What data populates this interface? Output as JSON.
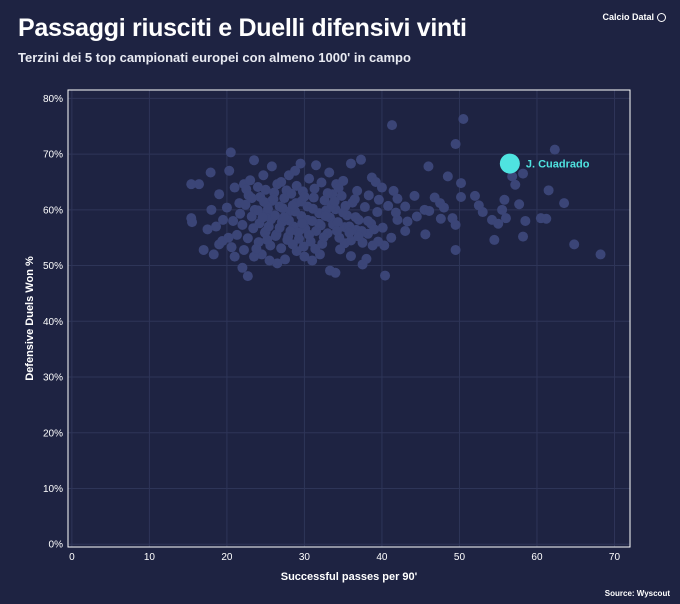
{
  "header": {
    "title": "Passaggi riusciti e Duelli difensivi vinti",
    "subtitle": "Terzini dei 5 top campionati europei con almeno 1000' in campo",
    "brand": "Calcio Datal"
  },
  "footer": {
    "source": "Source: Wyscout"
  },
  "colors": {
    "background": "#1e2342",
    "points": "#3b4577",
    "highlight": "#4fe3e0",
    "grid": "#2e3558",
    "axis": "#ffffff"
  },
  "chart_data": {
    "type": "scatter",
    "title": "Passaggi riusciti e Duelli difensivi vinti",
    "xlabel": "Successful passes per 90'",
    "ylabel": "Defensive Duels Won %",
    "xlim": [
      -0.5,
      72
    ],
    "ylim": [
      -0.5,
      81.5
    ],
    "xticks": [
      0,
      10,
      20,
      30,
      40,
      50,
      60,
      70
    ],
    "yticks": [
      0,
      10,
      20,
      30,
      40,
      50,
      60,
      70,
      80
    ],
    "xtick_labels": [
      "0",
      "10",
      "20",
      "30",
      "40",
      "50",
      "60",
      "70"
    ],
    "ytick_labels": [
      "0%",
      "10%",
      "20%",
      "30%",
      "40%",
      "50%",
      "60%",
      "70%",
      "80%"
    ],
    "grid": true,
    "highlight": {
      "label": "J. Cuadrado",
      "x": 56.5,
      "y": 68.3
    },
    "points": [
      [
        15.4,
        64.6
      ],
      [
        16.4,
        64.6
      ],
      [
        17.9,
        66.7
      ],
      [
        15.4,
        58.5
      ],
      [
        15.5,
        57.8
      ],
      [
        17.0,
        52.8
      ],
      [
        18.3,
        52.0
      ],
      [
        19.0,
        53.8
      ],
      [
        20.5,
        70.3
      ],
      [
        20.3,
        67.0
      ],
      [
        21.0,
        64.0
      ],
      [
        22.2,
        64.6
      ],
      [
        22.5,
        63.7
      ],
      [
        23.5,
        68.9
      ],
      [
        24.7,
        66.2
      ],
      [
        25.8,
        67.8
      ],
      [
        26.5,
        64.6
      ],
      [
        27.7,
        63.5
      ],
      [
        28.0,
        66.2
      ],
      [
        28.8,
        67.0
      ],
      [
        29.5,
        68.3
      ],
      [
        31.5,
        68.0
      ],
      [
        33.2,
        66.7
      ],
      [
        34.1,
        64.6
      ],
      [
        35.0,
        65.2
      ],
      [
        36.0,
        68.3
      ],
      [
        37.3,
        69.0
      ],
      [
        38.7,
        65.8
      ],
      [
        39.2,
        65.0
      ],
      [
        41.3,
        75.2
      ],
      [
        40.0,
        64.0
      ],
      [
        41.5,
        63.4
      ],
      [
        42.0,
        62.0
      ],
      [
        43.0,
        60.6
      ],
      [
        44.2,
        62.5
      ],
      [
        45.5,
        60.0
      ],
      [
        46.8,
        62.2
      ],
      [
        47.5,
        61.2
      ],
      [
        48.0,
        60.4
      ],
      [
        49.1,
        58.5
      ],
      [
        49.5,
        57.3
      ],
      [
        50.2,
        62.3
      ],
      [
        48.5,
        66.0
      ],
      [
        49.5,
        71.8
      ],
      [
        50.5,
        76.3
      ],
      [
        46.0,
        67.8
      ],
      [
        52.0,
        62.5
      ],
      [
        53.0,
        59.6
      ],
      [
        54.2,
        58.2
      ],
      [
        55.0,
        57.5
      ],
      [
        55.5,
        60.0
      ],
      [
        56.0,
        58.5
      ],
      [
        57.2,
        64.5
      ],
      [
        58.2,
        66.5
      ],
      [
        57.7,
        61.0
      ],
      [
        58.5,
        58.0
      ],
      [
        60.5,
        58.5
      ],
      [
        61.5,
        63.5
      ],
      [
        62.3,
        70.8
      ],
      [
        63.5,
        61.2
      ],
      [
        61.2,
        58.4
      ],
      [
        64.8,
        53.8
      ],
      [
        68.2,
        52.0
      ],
      [
        58.2,
        55.2
      ],
      [
        54.5,
        54.6
      ],
      [
        49.5,
        52.8
      ],
      [
        45.6,
        55.6
      ],
      [
        43.0,
        56.2
      ],
      [
        42.0,
        58.2
      ],
      [
        41.2,
        55.0
      ],
      [
        40.3,
        53.6
      ],
      [
        39.5,
        54.3
      ],
      [
        38.0,
        51.2
      ],
      [
        37.5,
        50.2
      ],
      [
        36.0,
        51.7
      ],
      [
        35.2,
        54.0
      ],
      [
        34.6,
        52.9
      ],
      [
        33.3,
        49.1
      ],
      [
        32.0,
        52.0
      ],
      [
        31.0,
        50.9
      ],
      [
        30.0,
        51.6
      ],
      [
        29.0,
        52.6
      ],
      [
        27.5,
        51.1
      ],
      [
        26.5,
        50.4
      ],
      [
        25.5,
        50.9
      ],
      [
        24.5,
        52.0
      ],
      [
        23.5,
        51.6
      ],
      [
        22.7,
        48.1
      ],
      [
        22.0,
        49.6
      ],
      [
        21.0,
        51.6
      ],
      [
        20.6,
        53.3
      ],
      [
        19.4,
        54.4
      ],
      [
        18.6,
        57.0
      ],
      [
        19.5,
        58.2
      ],
      [
        40.4,
        48.2
      ],
      [
        34.0,
        48.7
      ],
      [
        20.0,
        60.4
      ],
      [
        21.6,
        61.2
      ],
      [
        22.8,
        62.6
      ],
      [
        23.6,
        60.0
      ],
      [
        24.3,
        62.3
      ],
      [
        25.2,
        59.5
      ],
      [
        25.8,
        61.6
      ],
      [
        26.8,
        60.6
      ],
      [
        27.4,
        62.1
      ],
      [
        28.2,
        59.8
      ],
      [
        28.9,
        61.2
      ],
      [
        29.6,
        58.9
      ],
      [
        30.4,
        60.6
      ],
      [
        31.2,
        62.2
      ],
      [
        31.9,
        59.4
      ],
      [
        32.6,
        61.7
      ],
      [
        33.3,
        58.6
      ],
      [
        34.0,
        60.1
      ],
      [
        34.8,
        62.5
      ],
      [
        35.5,
        59.0
      ],
      [
        36.2,
        61.3
      ],
      [
        37.0,
        58.2
      ],
      [
        37.8,
        60.5
      ],
      [
        38.6,
        57.5
      ],
      [
        39.4,
        59.6
      ],
      [
        40.1,
        56.8
      ],
      [
        24.2,
        57.6
      ],
      [
        25.0,
        56.1
      ],
      [
        25.7,
        58.3
      ],
      [
        26.4,
        55.6
      ],
      [
        27.1,
        57.8
      ],
      [
        27.9,
        55.2
      ],
      [
        28.6,
        57.0
      ],
      [
        29.3,
        54.8
      ],
      [
        30.1,
        56.6
      ],
      [
        30.8,
        54.3
      ],
      [
        31.5,
        56.2
      ],
      [
        32.3,
        53.9
      ],
      [
        33.0,
        55.8
      ],
      [
        33.7,
        57.4
      ],
      [
        34.5,
        55.0
      ],
      [
        35.2,
        56.9
      ],
      [
        36.0,
        54.5
      ],
      [
        36.7,
        56.4
      ],
      [
        37.5,
        54.1
      ],
      [
        38.2,
        55.7
      ],
      [
        21.3,
        55.5
      ],
      [
        22.0,
        57.3
      ],
      [
        22.7,
        54.9
      ],
      [
        23.4,
        56.7
      ],
      [
        24.1,
        54.2
      ],
      [
        24.9,
        55.9
      ],
      [
        25.6,
        53.6
      ],
      [
        26.3,
        55.3
      ],
      [
        27.0,
        53.1
      ],
      [
        27.8,
        54.6
      ],
      [
        28.5,
        53.8
      ],
      [
        29.2,
        56.0
      ],
      [
        29.9,
        53.4
      ],
      [
        30.6,
        55.5
      ],
      [
        31.4,
        53.0
      ],
      [
        32.1,
        57.2
      ],
      [
        32.8,
        59.9
      ],
      [
        33.6,
        62.8
      ],
      [
        26.1,
        63.1
      ],
      [
        27.0,
        65.0
      ],
      [
        28.3,
        62.9
      ],
      [
        29.0,
        64.3
      ],
      [
        29.8,
        63.3
      ],
      [
        30.6,
        65.6
      ],
      [
        31.3,
        63.8
      ],
      [
        32.2,
        64.9
      ],
      [
        33.0,
        63.0
      ],
      [
        23.0,
        65.3
      ],
      [
        24.0,
        64.1
      ],
      [
        25.0,
        63.6
      ],
      [
        36.8,
        63.4
      ],
      [
        38.3,
        62.6
      ],
      [
        39.6,
        61.8
      ],
      [
        40.8,
        60.7
      ],
      [
        41.8,
        59.5
      ],
      [
        43.3,
        57.9
      ],
      [
        44.5,
        58.8
      ],
      [
        46.1,
        59.8
      ],
      [
        47.6,
        58.4
      ],
      [
        19.0,
        62.8
      ],
      [
        18.0,
        60.0
      ],
      [
        17.5,
        56.5
      ],
      [
        20.8,
        58.0
      ],
      [
        21.7,
        59.3
      ],
      [
        22.4,
        60.9
      ],
      [
        23.2,
        58.8
      ],
      [
        24.0,
        59.9
      ],
      [
        24.8,
        61.4
      ],
      [
        25.4,
        57.0
      ],
      [
        26.2,
        59.0
      ],
      [
        27.2,
        60.3
      ],
      [
        28.0,
        58.1
      ],
      [
        28.8,
        59.7
      ],
      [
        29.6,
        61.5
      ],
      [
        30.4,
        58.2
      ],
      [
        31.1,
        60.2
      ],
      [
        31.9,
        57.5
      ],
      [
        32.7,
        58.9
      ],
      [
        33.5,
        60.8
      ],
      [
        34.3,
        57.8
      ],
      [
        35.0,
        59.5
      ],
      [
        35.8,
        57.0
      ],
      [
        36.6,
        58.7
      ],
      [
        37.4,
        56.2
      ],
      [
        38.2,
        58.0
      ],
      [
        39.0,
        56.5
      ],
      [
        23.8,
        53.0
      ],
      [
        25.2,
        54.6
      ],
      [
        26.8,
        56.8
      ],
      [
        28.2,
        56.2
      ],
      [
        29.7,
        57.6
      ],
      [
        31.0,
        58.0
      ],
      [
        32.5,
        55.1
      ],
      [
        34.2,
        56.2
      ],
      [
        35.8,
        55.9
      ],
      [
        37.0,
        55.2
      ],
      [
        38.8,
        53.6
      ],
      [
        22.2,
        52.8
      ],
      [
        20.2,
        55.0
      ],
      [
        36.5,
        61.9
      ],
      [
        35.3,
        60.7
      ],
      [
        34.4,
        63.9
      ],
      [
        33.9,
        61.5
      ],
      [
        30.0,
        62.4
      ],
      [
        28.5,
        60.8
      ],
      [
        27.4,
        58.7
      ],
      [
        26.0,
        61.9
      ],
      [
        25.3,
        60.2
      ],
      [
        24.6,
        58.6
      ],
      [
        23.2,
        62.1
      ],
      [
        50.2,
        64.8
      ],
      [
        52.5,
        60.8
      ],
      [
        55.8,
        61.8
      ],
      [
        56.8,
        66.0
      ]
    ]
  }
}
